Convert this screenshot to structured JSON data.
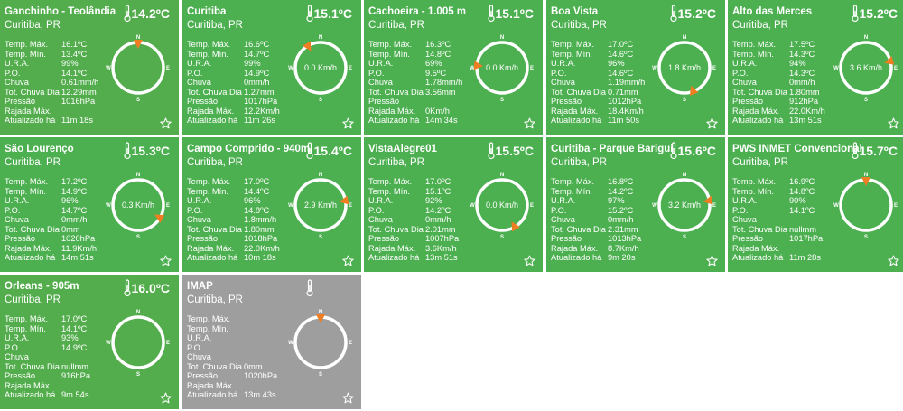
{
  "labels": {
    "max": "Temp. Máx.",
    "min": "Temp. Mín.",
    "ura": "U.R.A.",
    "po": "P.O.",
    "chuva": "Chuva",
    "tot": "Tot. Chuva Dia",
    "pressao": "Pressão",
    "rajada": "Rajada Máx.",
    "atual": "Atualizado há"
  },
  "compass_letters": {
    "n": "N",
    "s": "S",
    "e": "E",
    "w": "W"
  },
  "icons": {
    "thermometer": "thermometer-icon",
    "favorite": "star-icon"
  },
  "colors": {
    "online": "#4caf50",
    "offline": "#9e9e9e",
    "arrow": "#ef7d22"
  },
  "stations": [
    {
      "name": "Ganchinho - Teolândia",
      "location": "Curitiba, PR",
      "temp": "14.2ºC",
      "max": "16.1ºC",
      "min": "13.4ºC",
      "ura": "99%",
      "po": "14.1ºC",
      "chuva": "0.61mm/h",
      "tot": "12.29mm",
      "pressao": "1016hPa",
      "rajada": "",
      "atual": "11m 18s",
      "speed": "",
      "dir_deg": 0,
      "has_arrow": true,
      "offline": false
    },
    {
      "name": "Curitiba",
      "location": "Curitiba, PR",
      "temp": "15.1ºC",
      "max": "16.6ºC",
      "min": "14.7ºC",
      "ura": "99%",
      "po": "14.9ºC",
      "chuva": "0mm/h",
      "tot": "1.27mm",
      "pressao": "1017hPa",
      "rajada": "12.2Km/h",
      "atual": "11m 26s",
      "speed": "0.0 Km/h",
      "dir_deg": 330,
      "has_arrow": true,
      "offline": false
    },
    {
      "name": "Cachoeira - 1.005 m",
      "location": "Curitiba, PR",
      "temp": "15.1ºC",
      "max": "16.3ºC",
      "min": "14.8ºC",
      "ura": "69%",
      "po": "9.5ºC",
      "chuva": "1.78mm/h",
      "tot": "3.56mm",
      "pressao": "",
      "rajada": "0Km/h",
      "atual": "14m 34s",
      "speed": "0.0 Km/h",
      "dir_deg": 275,
      "has_arrow": true,
      "offline": false
    },
    {
      "name": "Boa Vista",
      "location": "Curitiba, PR",
      "temp": "15.2ºC",
      "max": "17.0ºC",
      "min": "14.6ºC",
      "ura": "96%",
      "po": "14.6ºC",
      "chuva": "1.19mm/h",
      "tot": "0.71mm",
      "pressao": "1012hPa",
      "rajada": "18.4Km/h",
      "atual": "11m 50s",
      "speed": "1.8 Km/h",
      "dir_deg": 160,
      "has_arrow": true,
      "offline": false
    },
    {
      "name": "Alto das Merces",
      "location": "Curitiba, PR",
      "temp": "15.2ºC",
      "max": "17.5ºC",
      "min": "14.3ºC",
      "ura": "94%",
      "po": "14.3ºC",
      "chuva": "0mm/h",
      "tot": "1.80mm",
      "pressao": "912hPa",
      "rajada": "22.0Km/h",
      "atual": "13m 51s",
      "speed": "3.6 Km/h",
      "dir_deg": 75,
      "has_arrow": true,
      "offline": false
    },
    {
      "name": "São Lourenço",
      "location": "Curitiba, PR",
      "temp": "15.3ºC",
      "max": "17.2ºC",
      "min": "14.9ºC",
      "ura": "96%",
      "po": "14.7ºC",
      "chuva": "0mm/h",
      "tot": "0mm",
      "pressao": "1020hPa",
      "rajada": "11.9Km/h",
      "atual": "14m 51s",
      "speed": "0.3 Km/h",
      "dir_deg": 120,
      "has_arrow": true,
      "offline": false
    },
    {
      "name": "Campo Comprido - 940m",
      "location": "Curitiba, PR",
      "temp": "15.4ºC",
      "max": "17.0ºC",
      "min": "14.4ºC",
      "ura": "96%",
      "po": "14.8ºC",
      "chuva": "1.8mm/h",
      "tot": "1.80mm",
      "pressao": "1018hPa",
      "rajada": "22.0Km/h",
      "atual": "10m 18s",
      "speed": "2.9 Km/h",
      "dir_deg": 80,
      "has_arrow": true,
      "offline": false
    },
    {
      "name": "VistaAlegre01",
      "location": "Curitiba, PR",
      "temp": "15.5ºC",
      "max": "17.0ºC",
      "min": "15.1ºC",
      "ura": "92%",
      "po": "14.2ºC",
      "chuva": "0mm/h",
      "tot": "2.01mm",
      "pressao": "1007hPa",
      "rajada": "3.6Km/h",
      "atual": "13m 51s",
      "speed": "0.0 Km/h",
      "dir_deg": 150,
      "has_arrow": true,
      "offline": false
    },
    {
      "name": "Curitiba - Parque Barigui",
      "location": "Curitiba, PR",
      "temp": "15.6ºC",
      "max": "16.8ºC",
      "min": "14.2ºC",
      "ura": "97%",
      "po": "15.2ºC",
      "chuva": "0mm/h",
      "tot": "2.31mm",
      "pressao": "1013hPa",
      "rajada": "8.7Km/h",
      "atual": "9m 20s",
      "speed": "3.2 Km/h",
      "dir_deg": 80,
      "has_arrow": true,
      "offline": false
    },
    {
      "name": "PWS INMET Convencional",
      "location": "Curitiba, PR",
      "temp": "15.7ºC",
      "max": "16.9ºC",
      "min": "14.8ºC",
      "ura": "90%",
      "po": "14.1ºC",
      "chuva": "",
      "tot": "nullmm",
      "pressao": "1017hPa",
      "rajada": "",
      "atual": "11m 28s",
      "speed": "",
      "dir_deg": 0,
      "has_arrow": true,
      "offline": false
    },
    {
      "name": "Orleans - 905m",
      "location": "Curitiba, PR",
      "temp": "16.0ºC",
      "max": "17.0ºC",
      "min": "14.1ºC",
      "ura": "93%",
      "po": "14.9ºC",
      "chuva": "",
      "tot": "nullmm",
      "pressao": "916hPa",
      "rajada": "",
      "atual": "9m 54s",
      "speed": "",
      "dir_deg": 0,
      "has_arrow": false,
      "offline": false
    },
    {
      "name": "IMAP",
      "location": "Curitiba, PR",
      "temp": "",
      "max": "",
      "min": "",
      "ura": "",
      "po": "",
      "chuva": "",
      "tot": "0mm",
      "pressao": "1020hPa",
      "rajada": "",
      "atual": "13m 43s",
      "speed": "",
      "dir_deg": 0,
      "has_arrow": true,
      "offline": true
    }
  ]
}
